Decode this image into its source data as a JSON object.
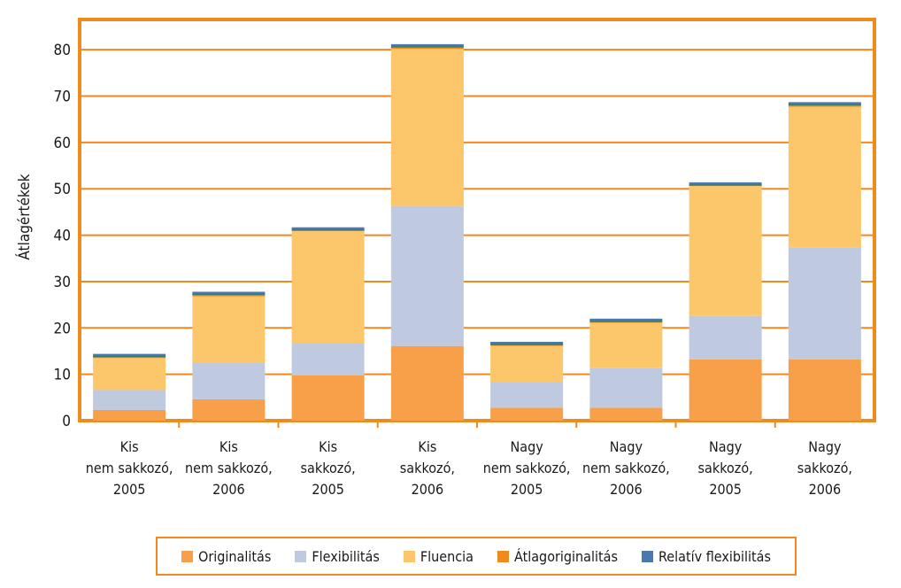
{
  "chart_data": {
    "type": "bar",
    "stacked": true,
    "title": "",
    "xlabel": "",
    "ylabel": "Átlagértékek",
    "ylim": [
      0,
      85
    ],
    "yticks": [
      0,
      10,
      20,
      30,
      40,
      50,
      60,
      70,
      80
    ],
    "grid": true,
    "legend_position": "bottom",
    "categories": [
      [
        "Kis",
        "nem sakkozó,",
        "2005"
      ],
      [
        "Kis",
        "nem sakkozó,",
        "2006"
      ],
      [
        "Kis",
        "sakkozó,",
        "2005"
      ],
      [
        "Kis",
        "sakkozó,",
        "2006"
      ],
      [
        "Nagy",
        "nem sakkozó,",
        "2005"
      ],
      [
        "Nagy",
        "nem sakkozó,",
        "2006"
      ],
      [
        "Nagy",
        "sakkozó,",
        "2005"
      ],
      [
        "Nagy",
        "sakkozó,",
        "2006"
      ]
    ],
    "series": [
      {
        "name": "Originalitás",
        "color": "#f7a049",
        "values": [
          2.3,
          4.6,
          9.8,
          16.1,
          2.8,
          2.8,
          13.2,
          13.2
        ]
      },
      {
        "name": "Flexibilitás",
        "color": "#bfc9e0",
        "values": [
          4.3,
          7.9,
          7.0,
          30.2,
          5.6,
          8.5,
          9.4,
          24.2
        ]
      },
      {
        "name": "Fluencia",
        "color": "#fcc76a",
        "values": [
          6.9,
          14.3,
          24.1,
          33.9,
          7.7,
          9.8,
          28.0,
          30.3
        ]
      },
      {
        "name": "Átlagoriginalitás",
        "color": "#f08a1c",
        "values": [
          0.3,
          0.3,
          0.3,
          0.3,
          0.3,
          0.3,
          0.3,
          0.3
        ]
      },
      {
        "name": "Relatív flexibilitás",
        "color": "#4a78b0",
        "values": [
          0.6,
          0.7,
          0.5,
          0.7,
          0.6,
          0.6,
          0.5,
          0.7
        ]
      }
    ]
  },
  "style": {
    "frame_color": "#f08a1c",
    "grid_color": "#f08a1c",
    "series_top_line_color": "#3b7a6a"
  }
}
